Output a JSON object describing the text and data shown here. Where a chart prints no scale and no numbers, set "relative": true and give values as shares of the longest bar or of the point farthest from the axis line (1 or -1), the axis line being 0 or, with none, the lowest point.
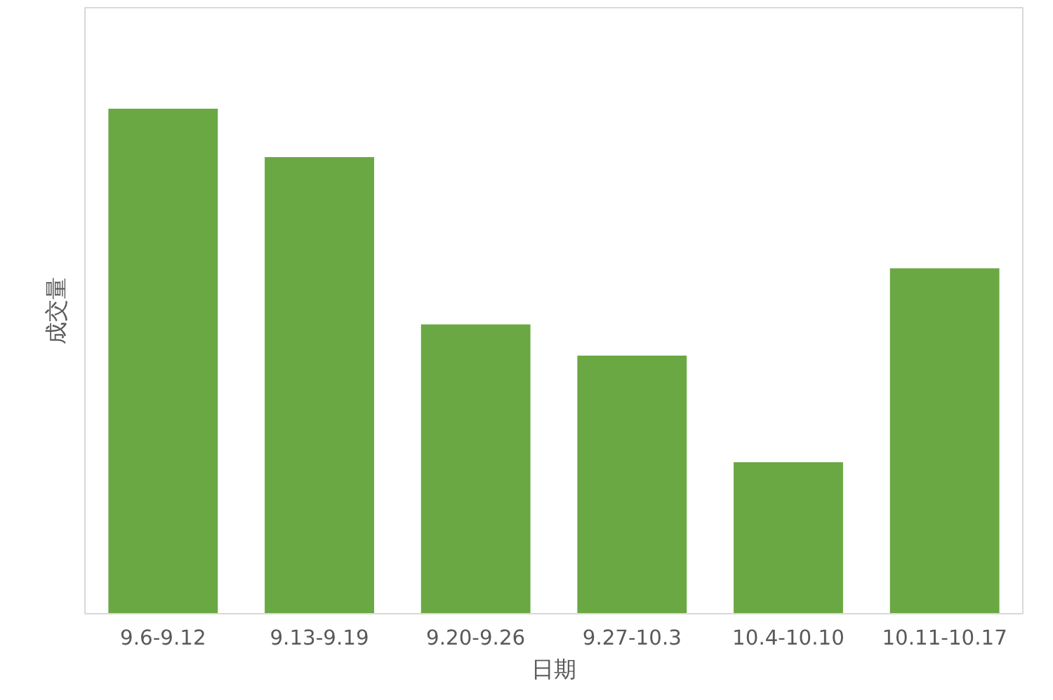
{
  "chart_data": {
    "type": "bar",
    "relative": true,
    "xlabel": "日期",
    "ylabel": "成交量",
    "categories": [
      "9.6-9.12",
      "9.13-9.19",
      "9.20-9.26",
      "9.27-10.3",
      "10.4-10.10",
      "10.11-10.17"
    ],
    "values": [
      1,
      0.904,
      0.573,
      0.511,
      0.3,
      0.684
    ],
    "color": "#6aa843",
    "grid": false
  }
}
